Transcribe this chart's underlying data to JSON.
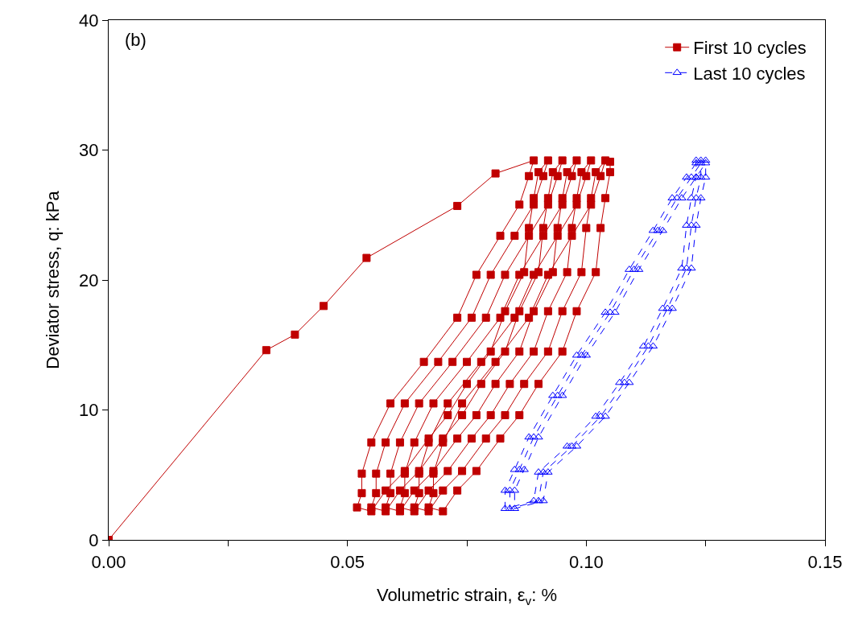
{
  "chart_data": {
    "type": "line",
    "xlabel": "Volumetric strain, ε$_{v}$: %",
    "ylabel": "Deviator stress, q: kPa",
    "annotations": [
      "(b)"
    ],
    "xlim": [
      0,
      0.15
    ],
    "xticks": [
      {
        "value": 0,
        "label": "0.00"
      },
      {
        "value": 0.025,
        "label": null
      },
      {
        "value": 0.05,
        "label": "0.05"
      },
      {
        "value": 0.075,
        "label": null
      },
      {
        "value": 0.1,
        "label": "0.10"
      },
      {
        "value": 0.125,
        "label": null
      },
      {
        "value": 0.15,
        "label": "0.15"
      }
    ],
    "ylim": [
      0,
      40
    ],
    "yticks": [
      0,
      10,
      20,
      30,
      40
    ],
    "grid": false,
    "legend": "top right",
    "series": [
      {
        "name": "First 10 cycles",
        "color": "#c00000",
        "marker": "square",
        "line_style": "solid",
        "x": [
          0,
          0.033,
          0.039,
          0.045,
          0.054,
          0.073,
          0.081,
          0.089,
          0.088,
          0.086,
          0.082,
          0.077,
          0.073,
          0.066,
          0.059,
          0.055,
          0.053,
          0.053,
          0.052,
          0.055,
          0.058,
          0.062,
          0.067,
          0.071,
          0.075,
          0.08,
          0.083,
          0.087,
          0.088,
          0.089,
          0.09,
          0.092,
          0.091,
          0.089,
          0.085,
          0.08,
          0.076,
          0.069,
          0.062,
          0.058,
          0.056,
          0.056,
          0.055,
          0.058,
          0.061,
          0.065,
          0.07,
          0.074,
          0.078,
          0.083,
          0.086,
          0.09,
          0.091,
          0.092,
          0.093,
          0.095,
          0.094,
          0.092,
          0.088,
          0.083,
          0.079,
          0.072,
          0.065,
          0.061,
          0.059,
          0.059,
          0.058,
          0.061,
          0.064,
          0.068,
          0.073,
          0.077,
          0.081,
          0.086,
          0.089,
          0.093,
          0.094,
          0.095,
          0.096,
          0.098,
          0.097,
          0.095,
          0.091,
          0.086,
          0.082,
          0.075,
          0.068,
          0.064,
          0.062,
          0.062,
          0.061,
          0.064,
          0.067,
          0.071,
          0.076,
          0.08,
          0.084,
          0.089,
          0.092,
          0.096,
          0.097,
          0.098,
          0.099,
          0.101,
          0.1,
          0.098,
          0.094,
          0.089,
          0.085,
          0.078,
          0.071,
          0.067,
          0.065,
          0.065,
          0.064,
          0.067,
          0.07,
          0.074,
          0.079,
          0.083,
          0.087,
          0.092,
          0.095,
          0.099,
          0.1,
          0.101,
          0.102,
          0.104,
          0.103,
          0.101,
          0.097,
          0.092,
          0.088,
          0.081,
          0.074,
          0.07,
          0.068,
          0.068,
          0.067,
          0.07,
          0.073,
          0.077,
          0.082,
          0.086,
          0.09,
          0.095,
          0.098,
          0.102,
          0.103,
          0.104,
          0.105,
          0.105
        ],
        "values": [
          0,
          14.6,
          15.8,
          18.0,
          21.7,
          25.7,
          28.2,
          29.2,
          28.0,
          25.8,
          23.4,
          20.4,
          17.1,
          13.7,
          10.5,
          7.5,
          5.1,
          3.6,
          2.5,
          2.2,
          3.8,
          5.3,
          7.8,
          9.6,
          12.0,
          14.5,
          17.6,
          20.6,
          24.0,
          26.3,
          28.3,
          29.2,
          28.0,
          25.8,
          23.4,
          20.4,
          17.1,
          13.7,
          10.5,
          7.5,
          5.1,
          3.6,
          2.5,
          2.2,
          3.8,
          5.3,
          7.8,
          9.6,
          12.0,
          14.5,
          17.6,
          20.6,
          24.0,
          26.3,
          28.3,
          29.2,
          28.0,
          25.8,
          23.4,
          20.4,
          17.1,
          13.7,
          10.5,
          7.5,
          5.1,
          3.6,
          2.5,
          2.2,
          3.8,
          5.3,
          7.8,
          9.6,
          12.0,
          14.5,
          17.6,
          20.6,
          24.0,
          26.3,
          28.3,
          29.2,
          28.0,
          25.8,
          23.4,
          20.4,
          17.1,
          13.7,
          10.5,
          7.5,
          5.1,
          3.6,
          2.5,
          2.2,
          3.8,
          5.3,
          7.8,
          9.6,
          12.0,
          14.5,
          17.6,
          20.6,
          24.0,
          26.3,
          28.3,
          29.2,
          28.0,
          25.8,
          23.4,
          20.4,
          17.1,
          13.7,
          10.5,
          7.5,
          5.1,
          3.6,
          2.5,
          2.2,
          3.8,
          5.3,
          7.8,
          9.6,
          12.0,
          14.5,
          17.6,
          20.6,
          24.0,
          26.3,
          28.3,
          29.2,
          28.0,
          25.8,
          23.4,
          20.4,
          17.1,
          13.7,
          10.5,
          7.5,
          5.1,
          3.6,
          2.5,
          2.2,
          3.8,
          5.3,
          7.8,
          9.6,
          12.0,
          14.5,
          17.6,
          20.6,
          24.0,
          26.3,
          28.3,
          29.1
        ]
      },
      {
        "name": "Last 10 cycles",
        "color": "#0000ff",
        "marker": "triangle",
        "line_style": "dashed",
        "x": [
          0.123,
          0.121,
          0.118,
          0.114,
          0.109,
          0.104,
          0.098,
          0.093,
          0.088,
          0.085,
          0.083,
          0.083,
          0.089,
          0.09,
          0.096,
          0.102,
          0.107,
          0.112,
          0.116,
          0.12,
          0.121,
          0.122,
          0.123,
          0.123,
          0.124,
          0.122,
          0.119,
          0.115,
          0.11,
          0.105,
          0.099,
          0.094,
          0.089,
          0.086,
          0.084,
          0.084,
          0.09,
          0.091,
          0.097,
          0.103,
          0.108,
          0.113,
          0.117,
          0.121,
          0.122,
          0.123,
          0.124,
          0.124,
          0.125,
          0.123,
          0.12,
          0.116,
          0.111,
          0.106,
          0.1,
          0.095,
          0.09,
          0.087,
          0.085,
          0.085,
          0.091,
          0.092,
          0.098,
          0.104,
          0.109,
          0.114,
          0.118,
          0.122,
          0.123,
          0.124,
          0.125,
          0.125
        ],
        "values": [
          29.0,
          27.9,
          26.3,
          23.8,
          20.8,
          17.5,
          14.2,
          11.1,
          7.9,
          5.4,
          3.8,
          2.4,
          3.0,
          5.2,
          7.2,
          9.5,
          12.1,
          14.9,
          17.8,
          20.9,
          24.2,
          26.3,
          27.9,
          29.2,
          29.0,
          27.9,
          26.3,
          23.8,
          20.8,
          17.5,
          14.2,
          11.1,
          7.9,
          5.4,
          3.8,
          2.4,
          3.0,
          5.2,
          7.2,
          9.5,
          12.1,
          14.9,
          17.8,
          20.9,
          24.2,
          26.3,
          27.9,
          29.2,
          29.0,
          27.9,
          26.3,
          23.8,
          20.8,
          17.5,
          14.2,
          11.1,
          7.9,
          5.4,
          3.8,
          2.4,
          3.0,
          5.2,
          7.2,
          9.5,
          12.1,
          14.9,
          17.8,
          20.9,
          24.2,
          26.3,
          27.9,
          29.2
        ]
      }
    ]
  }
}
